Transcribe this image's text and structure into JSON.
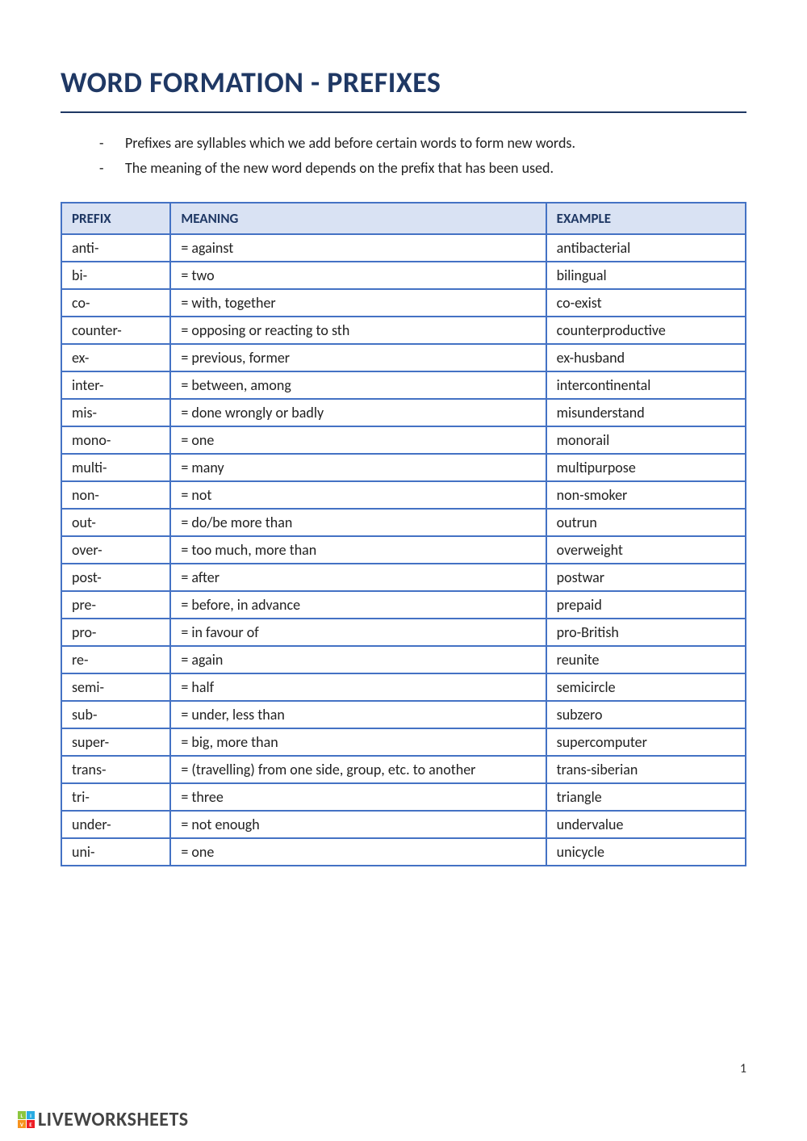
{
  "title": "WORD FORMATION - PREFIXES",
  "intro": [
    "Prefixes are syllables which we add before certain words to form new words.",
    "The meaning of the new word depends on the prefix that has been used."
  ],
  "table": {
    "columns": [
      "PREFIX",
      "MEANING",
      "EXAMPLE"
    ],
    "rows": [
      [
        "anti-",
        "= against",
        "antibacterial"
      ],
      [
        "bi-",
        "= two",
        "bilingual"
      ],
      [
        "co-",
        "= with, together",
        "co-exist"
      ],
      [
        "counter-",
        "= opposing or reacting to sth",
        "counterproductive"
      ],
      [
        "ex-",
        "= previous, former",
        "ex-husband"
      ],
      [
        "inter-",
        "= between, among",
        "intercontinental"
      ],
      [
        "mis-",
        "= done wrongly or badly",
        "misunderstand"
      ],
      [
        "mono-",
        "= one",
        "monorail"
      ],
      [
        "multi-",
        "= many",
        "multipurpose"
      ],
      [
        "non-",
        "= not",
        "non-smoker"
      ],
      [
        "out-",
        "= do/be more than",
        "outrun"
      ],
      [
        "over-",
        "= too much, more than",
        "overweight"
      ],
      [
        "post-",
        "= after",
        "postwar"
      ],
      [
        "pre-",
        "= before, in advance",
        "prepaid"
      ],
      [
        "pro-",
        "= in favour of",
        "pro-British"
      ],
      [
        "re-",
        "= again",
        "reunite"
      ],
      [
        "semi-",
        "= half",
        "semicircle"
      ],
      [
        "sub-",
        "= under, less than",
        "subzero"
      ],
      [
        "super-",
        "= big, more than",
        "supercomputer"
      ],
      [
        "trans-",
        "= (travelling) from one side, group, etc. to another",
        "trans-siberian"
      ],
      [
        "tri-",
        "= three",
        "triangle"
      ],
      [
        "under-",
        "= not enough",
        "undervalue"
      ],
      [
        "uni-",
        "= one",
        "unicycle"
      ]
    ],
    "header_bg": "#d9e2f3",
    "header_text_color": "#1f3864",
    "border_color": "#4472c4",
    "cell_bg": "#ffffff",
    "col_widths": [
      "16%",
      "55%",
      "29%"
    ]
  },
  "page_number": "1",
  "footer": {
    "brand": "LIVEWORKSHEETS",
    "logo_colors": [
      "#8cc63f",
      "#29abe2",
      "#f7931e",
      "#ed1c24"
    ],
    "logo_letters": [
      "L",
      "I",
      "V",
      "E"
    ]
  },
  "colors": {
    "title": "#1f3864",
    "body_text": "#222222",
    "page_bg": "#ffffff"
  }
}
